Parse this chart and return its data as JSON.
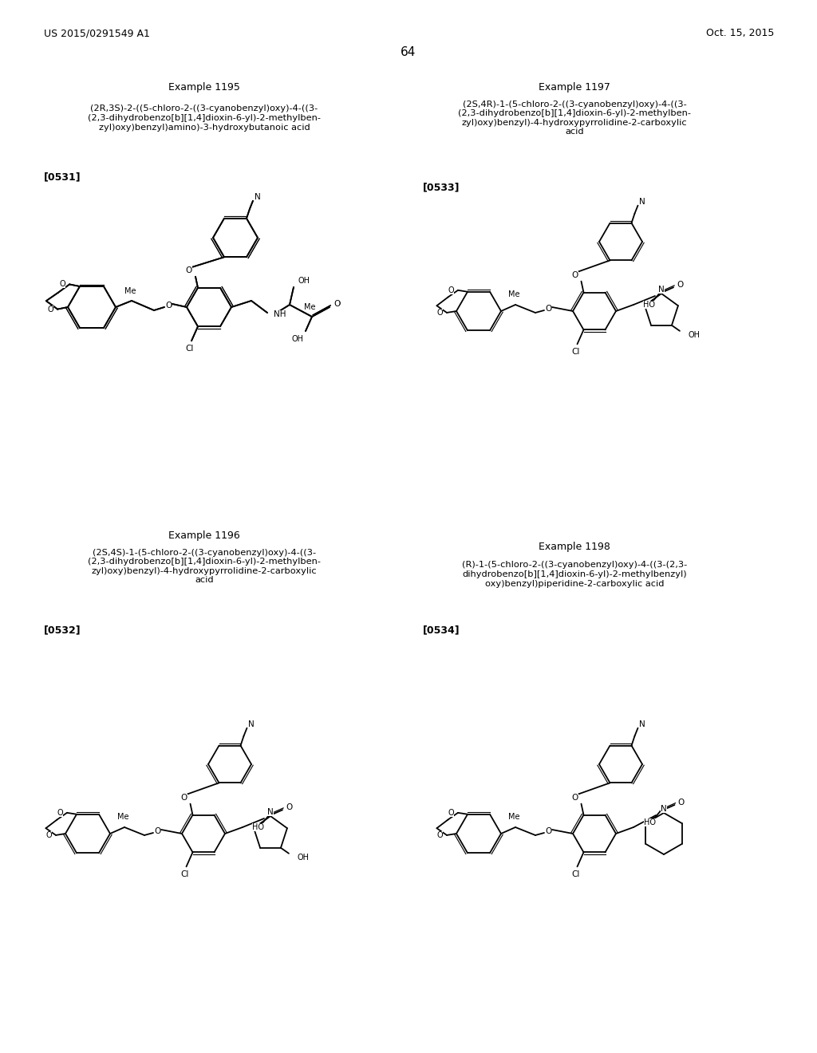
{
  "background_color": "#ffffff",
  "page_header_left": "US 2015/0291549 A1",
  "page_header_right": "Oct. 15, 2015",
  "page_number": "64",
  "ex1195_title": "Example 1195",
  "ex1197_title": "Example 1197",
  "ex1196_title": "Example 1196",
  "ex1198_title": "Example 1198",
  "ex1195_desc": "(2R,3S)-2-((5-chloro-2-((3-cyanobenzyl)oxy)-4-((3-\n(2,3-dihydrobenzo[b][1,4]dioxin-6-yl)-2-methylben-\nzyl)oxy)benzyl)amino)-3-hydroxybutanoic acid",
  "ex1197_desc": "(2S,4R)-1-(5-chloro-2-((3-cyanobenzyl)oxy)-4-((3-\n(2,3-dihydrobenzo[b][1,4]dioxin-6-yl)-2-methylben-\nzyl)oxy)benzyl)-4-hydroxypyrrolidine-2-carboxylic\nacid",
  "ex1196_desc": "(2S,4S)-1-(5-chloro-2-((3-cyanobenzyl)oxy)-4-((3-\n(2,3-dihydrobenzo[b][1,4]dioxin-6-yl)-2-methylben-\nzyl)oxy)benzyl)-4-hydroxypyrrolidine-2-carboxylic\nacid",
  "ex1198_desc": "(R)-1-(5-chloro-2-((3-cyanobenzyl)oxy)-4-((3-(2,3-\ndihydrobenzo[b][1,4]dioxin-6-yl)-2-methylbenzyl)\noxy)benzyl)piperidine-2-carboxylic acid",
  "ex1195_ref": "[0531]",
  "ex1197_ref": "[0533]",
  "ex1196_ref": "[0532]",
  "ex1198_ref": "[0534]",
  "header_fontsize": 9,
  "page_num_fontsize": 11,
  "title_fontsize": 9,
  "desc_fontsize": 8.2,
  "ref_fontsize": 9
}
